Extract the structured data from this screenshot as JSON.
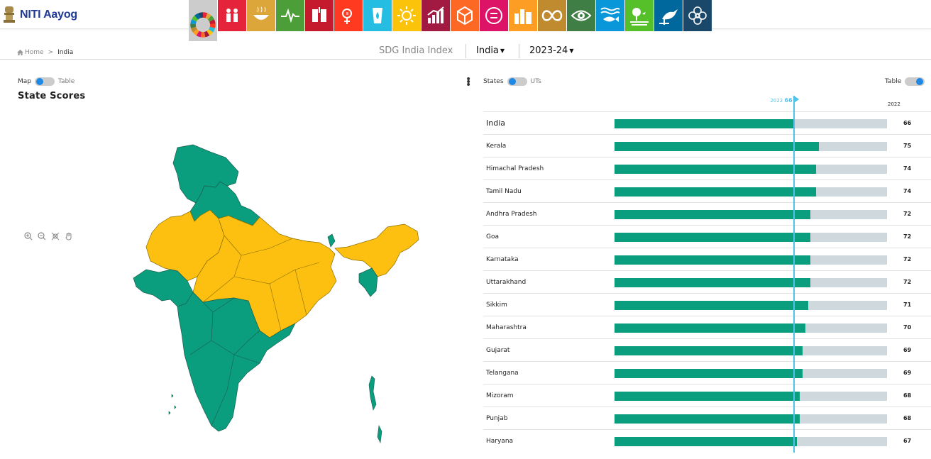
{
  "app": {
    "name": "NITI Aayog"
  },
  "breadcrumb": {
    "home": "Home",
    "separator": ">",
    "current": "India"
  },
  "header": {
    "index_title": "SDG India Index",
    "region": "India",
    "year": "2023-24"
  },
  "goals": [
    {
      "icon": "sdg-wheel-icon",
      "color": "#cccccc"
    },
    {
      "icon": "no-poverty-icon",
      "color": "#e5243b"
    },
    {
      "icon": "zero-hunger-icon",
      "color": "#dda63a"
    },
    {
      "icon": "good-health-icon",
      "color": "#4c9f38"
    },
    {
      "icon": "quality-education-icon",
      "color": "#c5192d"
    },
    {
      "icon": "gender-equality-icon",
      "color": "#ff3a21"
    },
    {
      "icon": "clean-water-icon",
      "color": "#26bde2"
    },
    {
      "icon": "clean-energy-icon",
      "color": "#fcc30b"
    },
    {
      "icon": "decent-work-icon",
      "color": "#a21942"
    },
    {
      "icon": "industry-innovation-icon",
      "color": "#fd6925"
    },
    {
      "icon": "reduced-inequalities-icon",
      "color": "#dd1367"
    },
    {
      "icon": "sustainable-cities-icon",
      "color": "#fd9d24"
    },
    {
      "icon": "responsible-consumption-icon",
      "color": "#bf8b2e"
    },
    {
      "icon": "climate-action-icon",
      "color": "#3f7e44"
    },
    {
      "icon": "life-below-water-icon",
      "color": "#0a97d9"
    },
    {
      "icon": "life-on-land-icon",
      "color": "#56c02b"
    },
    {
      "icon": "peace-justice-icon",
      "color": "#00689d"
    },
    {
      "icon": "partnerships-icon",
      "color": "#19486a"
    }
  ],
  "left_panel": {
    "toggle_left": "Map",
    "toggle_right": "Table",
    "title": "State Scores"
  },
  "right_panel": {
    "toggle_left": "States",
    "toggle_right": "UTs",
    "table_toggle": "Table",
    "marker_year": "2022",
    "marker_value": "66",
    "column_year": "2022"
  },
  "colors": {
    "front_runner": "#0a9d7e",
    "performer": "#fdc010",
    "bar_bg": "#cfd8dc",
    "marker": "#4fc3e8"
  },
  "chart_data": {
    "type": "bar",
    "categories": [
      "India",
      "Kerala",
      "Himachal Pradesh",
      "Tamil Nadu",
      "Andhra Pradesh",
      "Goa",
      "Karnataka",
      "Uttarakhand",
      "Sikkim",
      "Maharashtra",
      "Gujarat",
      "Telangana",
      "Mizoram",
      "Punjab",
      "Haryana"
    ],
    "values": [
      66,
      75,
      74,
      74,
      72,
      72,
      72,
      72,
      71,
      70,
      69,
      69,
      68,
      68,
      67
    ],
    "xlim": [
      0,
      100
    ],
    "reference_line": 66
  }
}
